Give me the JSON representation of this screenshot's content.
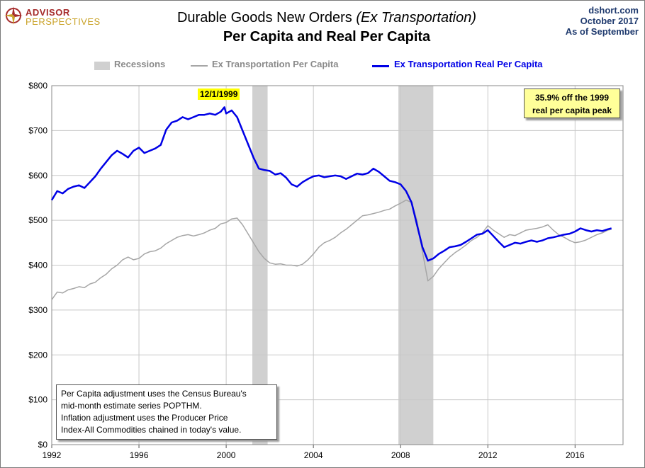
{
  "header": {
    "logo_line1": "ADVISOR",
    "logo_line2": "PERSPECTIVES",
    "title_main": "Durable Goods New Orders ",
    "title_italic": "(Ex Transportation)",
    "subtitle": "Per Capita and Real Per Capita",
    "source_1": "dshort.com",
    "source_2": "October 2017",
    "source_3": "As of September"
  },
  "annotations": {
    "peak_date": "12/1/1999",
    "peak_note_line1": "35.9% off the 1999",
    "peak_note_line2": "real per capita peak",
    "footnote": [
      "Per Capita adjustment uses the Census Bureau's",
      "mid-month estimate series POPTHM.",
      "Inflation adjustment uses the Producer Price",
      "Index-All Commodities chained in today's value."
    ]
  },
  "colors": {
    "real": "#0000e6",
    "nominal": "#a6a6a6",
    "recession": "#d0d0d0",
    "grid": "#c8c8c8"
  },
  "chart_data": {
    "type": "line",
    "x_unit": "year",
    "xlim": [
      1992,
      2018.2
    ],
    "ylim": [
      0,
      800
    ],
    "x_ticks": [
      1992,
      1996,
      2000,
      2004,
      2008,
      2012,
      2016
    ],
    "x_tick_labels": [
      "1992",
      "1996",
      "2000",
      "2004",
      "2008",
      "2012",
      "2016"
    ],
    "y_ticks": [
      0,
      100,
      200,
      300,
      400,
      500,
      600,
      700,
      800
    ],
    "y_tick_labels": [
      "$0",
      "$100",
      "$200",
      "$300",
      "$400",
      "$500",
      "$600",
      "$700",
      "$800"
    ],
    "grid": true,
    "legend_position": "top",
    "recessions": [
      {
        "name": "Recessions",
        "start": 2001.2,
        "end": 2001.9
      },
      {
        "start": 2007.9,
        "end": 2009.5
      }
    ],
    "series": [
      {
        "name": "Ex Transportation Per Capita",
        "color": "#a6a6a6",
        "points": [
          [
            1992.0,
            323
          ],
          [
            1992.25,
            340
          ],
          [
            1992.5,
            338
          ],
          [
            1992.75,
            345
          ],
          [
            1993.0,
            348
          ],
          [
            1993.25,
            352
          ],
          [
            1993.5,
            350
          ],
          [
            1993.75,
            358
          ],
          [
            1994.0,
            362
          ],
          [
            1994.25,
            372
          ],
          [
            1994.5,
            380
          ],
          [
            1994.75,
            392
          ],
          [
            1995.0,
            400
          ],
          [
            1995.25,
            412
          ],
          [
            1995.5,
            418
          ],
          [
            1995.75,
            412
          ],
          [
            1996.0,
            415
          ],
          [
            1996.25,
            425
          ],
          [
            1996.5,
            430
          ],
          [
            1996.75,
            432
          ],
          [
            1997.0,
            438
          ],
          [
            1997.25,
            448
          ],
          [
            1997.5,
            455
          ],
          [
            1997.75,
            462
          ],
          [
            1998.0,
            466
          ],
          [
            1998.25,
            468
          ],
          [
            1998.5,
            465
          ],
          [
            1998.75,
            468
          ],
          [
            1999.0,
            472
          ],
          [
            1999.25,
            478
          ],
          [
            1999.5,
            482
          ],
          [
            1999.75,
            492
          ],
          [
            2000.0,
            495
          ],
          [
            2000.25,
            503
          ],
          [
            2000.5,
            505
          ],
          [
            2000.75,
            490
          ],
          [
            2001.0,
            470
          ],
          [
            2001.25,
            450
          ],
          [
            2001.5,
            430
          ],
          [
            2001.75,
            415
          ],
          [
            2002.0,
            405
          ],
          [
            2002.25,
            402
          ],
          [
            2002.5,
            403
          ],
          [
            2002.75,
            400
          ],
          [
            2003.0,
            400
          ],
          [
            2003.25,
            398
          ],
          [
            2003.5,
            402
          ],
          [
            2003.75,
            412
          ],
          [
            2004.0,
            425
          ],
          [
            2004.25,
            440
          ],
          [
            2004.5,
            450
          ],
          [
            2004.75,
            455
          ],
          [
            2005.0,
            462
          ],
          [
            2005.25,
            472
          ],
          [
            2005.5,
            480
          ],
          [
            2005.75,
            490
          ],
          [
            2006.0,
            500
          ],
          [
            2006.25,
            510
          ],
          [
            2006.5,
            512
          ],
          [
            2006.75,
            515
          ],
          [
            2007.0,
            518
          ],
          [
            2007.25,
            522
          ],
          [
            2007.5,
            525
          ],
          [
            2007.75,
            532
          ],
          [
            2008.0,
            538
          ],
          [
            2008.25,
            545
          ],
          [
            2008.5,
            540
          ],
          [
            2008.75,
            500
          ],
          [
            2009.0,
            430
          ],
          [
            2009.25,
            365
          ],
          [
            2009.5,
            375
          ],
          [
            2009.75,
            392
          ],
          [
            2010.0,
            405
          ],
          [
            2010.25,
            418
          ],
          [
            2010.5,
            428
          ],
          [
            2010.75,
            436
          ],
          [
            2011.0,
            445
          ],
          [
            2011.25,
            455
          ],
          [
            2011.5,
            462
          ],
          [
            2011.75,
            472
          ],
          [
            2012.0,
            488
          ],
          [
            2012.25,
            478
          ],
          [
            2012.5,
            470
          ],
          [
            2012.75,
            462
          ],
          [
            2013.0,
            468
          ],
          [
            2013.25,
            466
          ],
          [
            2013.5,
            472
          ],
          [
            2013.75,
            478
          ],
          [
            2014.0,
            480
          ],
          [
            2014.25,
            482
          ],
          [
            2014.5,
            485
          ],
          [
            2014.75,
            490
          ],
          [
            2015.0,
            478
          ],
          [
            2015.25,
            468
          ],
          [
            2015.5,
            462
          ],
          [
            2015.75,
            455
          ],
          [
            2016.0,
            450
          ],
          [
            2016.25,
            452
          ],
          [
            2016.5,
            456
          ],
          [
            2016.75,
            462
          ],
          [
            2017.0,
            468
          ],
          [
            2017.25,
            472
          ],
          [
            2017.5,
            478
          ],
          [
            2017.67,
            480
          ]
        ]
      },
      {
        "name": "Ex Transportation Real Per Capita",
        "color": "#0000e6",
        "points": [
          [
            1992.0,
            545
          ],
          [
            1992.25,
            565
          ],
          [
            1992.5,
            560
          ],
          [
            1992.75,
            570
          ],
          [
            1993.0,
            575
          ],
          [
            1993.25,
            578
          ],
          [
            1993.5,
            572
          ],
          [
            1993.75,
            585
          ],
          [
            1994.0,
            598
          ],
          [
            1994.25,
            615
          ],
          [
            1994.5,
            630
          ],
          [
            1994.75,
            645
          ],
          [
            1995.0,
            655
          ],
          [
            1995.25,
            648
          ],
          [
            1995.5,
            640
          ],
          [
            1995.75,
            655
          ],
          [
            1996.0,
            662
          ],
          [
            1996.25,
            650
          ],
          [
            1996.5,
            655
          ],
          [
            1996.75,
            660
          ],
          [
            1997.0,
            668
          ],
          [
            1997.25,
            702
          ],
          [
            1997.5,
            718
          ],
          [
            1997.75,
            722
          ],
          [
            1998.0,
            730
          ],
          [
            1998.25,
            725
          ],
          [
            1998.5,
            730
          ],
          [
            1998.75,
            735
          ],
          [
            1999.0,
            735
          ],
          [
            1999.25,
            738
          ],
          [
            1999.5,
            735
          ],
          [
            1999.75,
            742
          ],
          [
            1999.92,
            752
          ],
          [
            2000.0,
            738
          ],
          [
            2000.25,
            745
          ],
          [
            2000.5,
            730
          ],
          [
            2000.75,
            700
          ],
          [
            2001.0,
            670
          ],
          [
            2001.25,
            640
          ],
          [
            2001.5,
            615
          ],
          [
            2001.75,
            612
          ],
          [
            2002.0,
            610
          ],
          [
            2002.25,
            602
          ],
          [
            2002.5,
            605
          ],
          [
            2002.75,
            595
          ],
          [
            2003.0,
            580
          ],
          [
            2003.25,
            575
          ],
          [
            2003.5,
            585
          ],
          [
            2003.75,
            592
          ],
          [
            2004.0,
            598
          ],
          [
            2004.25,
            600
          ],
          [
            2004.5,
            596
          ],
          [
            2004.75,
            598
          ],
          [
            2005.0,
            600
          ],
          [
            2005.25,
            598
          ],
          [
            2005.5,
            592
          ],
          [
            2005.75,
            598
          ],
          [
            2006.0,
            604
          ],
          [
            2006.25,
            602
          ],
          [
            2006.5,
            605
          ],
          [
            2006.75,
            615
          ],
          [
            2007.0,
            608
          ],
          [
            2007.25,
            598
          ],
          [
            2007.5,
            588
          ],
          [
            2007.75,
            585
          ],
          [
            2008.0,
            580
          ],
          [
            2008.25,
            565
          ],
          [
            2008.5,
            540
          ],
          [
            2008.75,
            490
          ],
          [
            2009.0,
            440
          ],
          [
            2009.25,
            410
          ],
          [
            2009.5,
            415
          ],
          [
            2009.75,
            425
          ],
          [
            2010.0,
            432
          ],
          [
            2010.25,
            440
          ],
          [
            2010.5,
            442
          ],
          [
            2010.75,
            445
          ],
          [
            2011.0,
            452
          ],
          [
            2011.25,
            460
          ],
          [
            2011.5,
            468
          ],
          [
            2011.75,
            470
          ],
          [
            2012.0,
            478
          ],
          [
            2012.25,
            465
          ],
          [
            2012.5,
            452
          ],
          [
            2012.75,
            440
          ],
          [
            2013.0,
            445
          ],
          [
            2013.25,
            450
          ],
          [
            2013.5,
            448
          ],
          [
            2013.75,
            452
          ],
          [
            2014.0,
            455
          ],
          [
            2014.25,
            452
          ],
          [
            2014.5,
            455
          ],
          [
            2014.75,
            460
          ],
          [
            2015.0,
            462
          ],
          [
            2015.25,
            465
          ],
          [
            2015.5,
            468
          ],
          [
            2015.75,
            470
          ],
          [
            2016.0,
            475
          ],
          [
            2016.25,
            482
          ],
          [
            2016.5,
            478
          ],
          [
            2016.75,
            475
          ],
          [
            2017.0,
            478
          ],
          [
            2017.25,
            476
          ],
          [
            2017.5,
            480
          ],
          [
            2017.67,
            482
          ]
        ]
      }
    ]
  }
}
